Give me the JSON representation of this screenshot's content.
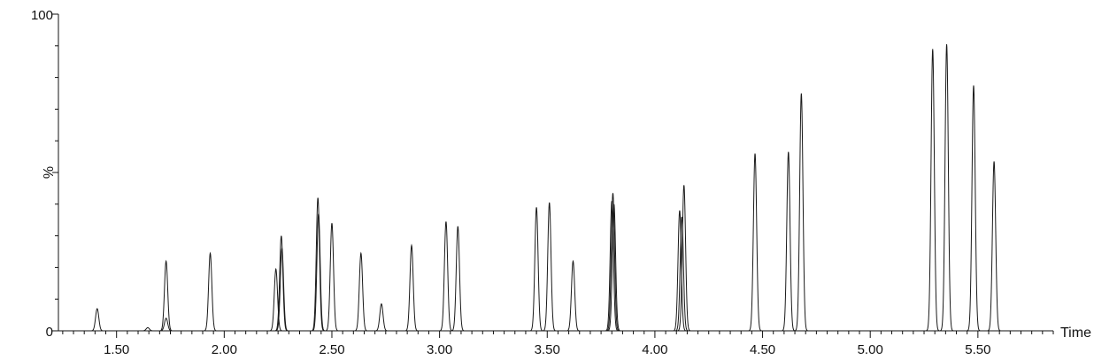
{
  "chart_data": {
    "type": "line",
    "title": "",
    "xlabel": "Time",
    "ylabel": "%",
    "xlim": [
      1.23,
      5.85
    ],
    "ylim": [
      0,
      100
    ],
    "grid": false,
    "line_color": "#1a1a1a",
    "x_ticks": [
      "1.50",
      "2.00",
      "2.50",
      "3.00",
      "3.50",
      "4.00",
      "4.50",
      "5.00",
      "5.50"
    ],
    "y_ticks": [
      "0",
      "100"
    ],
    "peaks": [
      {
        "t": 1.41,
        "h": 7.0
      },
      {
        "t": 1.645,
        "h": 1.0
      },
      {
        "t": 1.73,
        "h": 22.0
      },
      {
        "t": 1.73,
        "h": 4.0
      },
      {
        "t": 1.935,
        "h": 24.5
      },
      {
        "t": 2.24,
        "h": 19.5
      },
      {
        "t": 2.265,
        "h": 30.0
      },
      {
        "t": 2.268,
        "h": 26.0
      },
      {
        "t": 2.435,
        "h": 42.0
      },
      {
        "t": 2.438,
        "h": 37.0
      },
      {
        "t": 2.5,
        "h": 34.0
      },
      {
        "t": 2.635,
        "h": 24.5
      },
      {
        "t": 2.73,
        "h": 8.5
      },
      {
        "t": 2.87,
        "h": 27.0
      },
      {
        "t": 3.03,
        "h": 34.5
      },
      {
        "t": 3.085,
        "h": 33.0
      },
      {
        "t": 3.45,
        "h": 39.0
      },
      {
        "t": 3.51,
        "h": 40.5
      },
      {
        "t": 3.62,
        "h": 22.0
      },
      {
        "t": 3.805,
        "h": 43.5
      },
      {
        "t": 3.8,
        "h": 41.0
      },
      {
        "t": 3.81,
        "h": 40.0
      },
      {
        "t": 4.115,
        "h": 38.0
      },
      {
        "t": 4.125,
        "h": 36.0
      },
      {
        "t": 4.135,
        "h": 46.0
      },
      {
        "t": 4.465,
        "h": 56.0
      },
      {
        "t": 4.62,
        "h": 56.5
      },
      {
        "t": 4.68,
        "h": 75.0
      },
      {
        "t": 5.29,
        "h": 89.0
      },
      {
        "t": 5.355,
        "h": 90.5
      },
      {
        "t": 5.48,
        "h": 77.5
      },
      {
        "t": 5.575,
        "h": 53.5
      }
    ]
  }
}
